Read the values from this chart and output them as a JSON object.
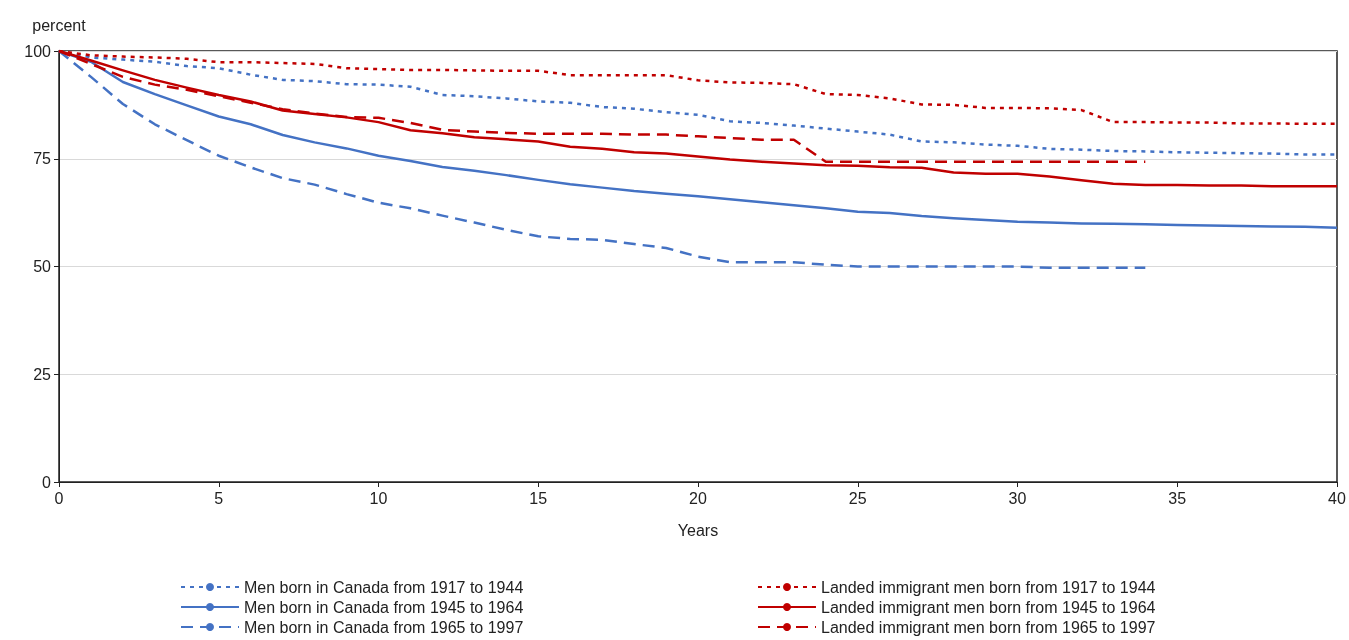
{
  "chart_data": {
    "type": "line",
    "ylabel": "percent",
    "xlabel": "Years",
    "x": [
      0,
      1,
      2,
      3,
      4,
      5,
      6,
      7,
      8,
      9,
      10,
      11,
      12,
      13,
      14,
      15,
      16,
      17,
      18,
      19,
      20,
      21,
      22,
      23,
      24,
      25,
      26,
      27,
      28,
      29,
      30,
      31,
      32,
      33,
      34,
      35,
      36,
      37,
      38,
      39,
      40
    ],
    "xlim": [
      0,
      40
    ],
    "xticks": [
      0,
      5,
      10,
      15,
      20,
      25,
      30,
      35,
      40
    ],
    "ylim": [
      0,
      100
    ],
    "yticks": [
      0,
      25,
      50,
      75,
      100
    ],
    "grid": "y",
    "legend": "bottom",
    "marker": "none",
    "series": [
      {
        "name": "Men born in Canada from 1917 to 1944",
        "color": "#4472c4",
        "line_style": "dotted",
        "values": [
          100,
          98.5,
          98,
          97.5,
          96.5,
          96,
          94.5,
          93.3,
          93,
          92.3,
          92.2,
          91.7,
          89.8,
          89.5,
          89,
          88.3,
          88,
          87,
          86.6,
          85.8,
          85.2,
          83.7,
          83.3,
          82.7,
          82,
          81.3,
          80.6,
          79,
          78.8,
          78.3,
          78,
          77.3,
          77.1,
          76.8,
          76.7,
          76.5,
          76.4,
          76.3,
          76.2,
          76,
          76
        ]
      },
      {
        "name": "Men born in Canada from 1945 to 1964",
        "color": "#4472c4",
        "line_style": "solid",
        "values": [
          100,
          97.5,
          92.8,
          90,
          87.4,
          84.8,
          83,
          80.5,
          78.8,
          77.4,
          75.7,
          74.5,
          73.1,
          72.2,
          71.2,
          70.1,
          69.1,
          68.3,
          67.5,
          66.9,
          66.3,
          65.6,
          64.9,
          64.2,
          63.5,
          62.7,
          62.4,
          61.7,
          61.2,
          60.8,
          60.4,
          60.2,
          60,
          59.9,
          59.8,
          59.6,
          59.5,
          59.4,
          59.3,
          59.2,
          59
        ]
      },
      {
        "name": "Men born in Canada from 1965 to 1997",
        "color": "#4472c4",
        "line_style": "dashed",
        "values": [
          100,
          94,
          87.7,
          83,
          79.3,
          75.7,
          73,
          70.5,
          69,
          66.8,
          64.8,
          63.5,
          61.8,
          60.2,
          58.5,
          57,
          56.4,
          56.2,
          55.2,
          54.3,
          52.3,
          51,
          51,
          51,
          50.4,
          50,
          50,
          50,
          50,
          50,
          50,
          49.7,
          49.7,
          49.7,
          49.7,
          null,
          null,
          null,
          null,
          null,
          null
        ]
      },
      {
        "name": "Landed immigrant men born from 1917 to 1944",
        "color": "#c00000",
        "line_style": "dotted",
        "values": [
          100,
          99,
          98.7,
          98.5,
          98.2,
          97.4,
          97.4,
          97.2,
          97,
          96,
          95.8,
          95.6,
          95.6,
          95.5,
          95.4,
          95.4,
          94.4,
          94.4,
          94.4,
          94.4,
          93.2,
          92.7,
          92.6,
          92.3,
          90,
          89.8,
          89,
          87.6,
          87.5,
          86.8,
          86.8,
          86.7,
          86.3,
          83.5,
          83.5,
          83.4,
          83.4,
          83.2,
          83.2,
          83.1,
          83.1
        ]
      },
      {
        "name": "Landed immigrant men born from 1945 to 1964",
        "color": "#c00000",
        "line_style": "solid",
        "values": [
          100,
          97.8,
          95.5,
          93.3,
          91.5,
          89.8,
          88.3,
          86.2,
          85.4,
          84.6,
          83.5,
          81.6,
          80.9,
          80,
          79.5,
          79,
          77.8,
          77.3,
          76.5,
          76.2,
          75.5,
          74.8,
          74.3,
          73.9,
          73.5,
          73.4,
          73,
          72.9,
          71.8,
          71.5,
          71.5,
          70.9,
          70,
          69.2,
          68.9,
          68.9,
          68.8,
          68.8,
          68.6,
          68.6,
          68.6
        ]
      },
      {
        "name": "Landed immigrant men born from 1965 to 1997",
        "color": "#c00000",
        "line_style": "dashed",
        "values": [
          100,
          97,
          94,
          92.2,
          91,
          89.5,
          88,
          86.5,
          85.5,
          84.7,
          84.5,
          83.3,
          81.7,
          81.3,
          81,
          80.8,
          80.8,
          80.8,
          80.6,
          80.6,
          80.2,
          79.8,
          79.4,
          79.4,
          74.3,
          74.3,
          74.3,
          74.3,
          74.3,
          74.3,
          74.3,
          74.3,
          74.3,
          74.3,
          74.3,
          null,
          null,
          null,
          null,
          null,
          null
        ]
      }
    ]
  }
}
